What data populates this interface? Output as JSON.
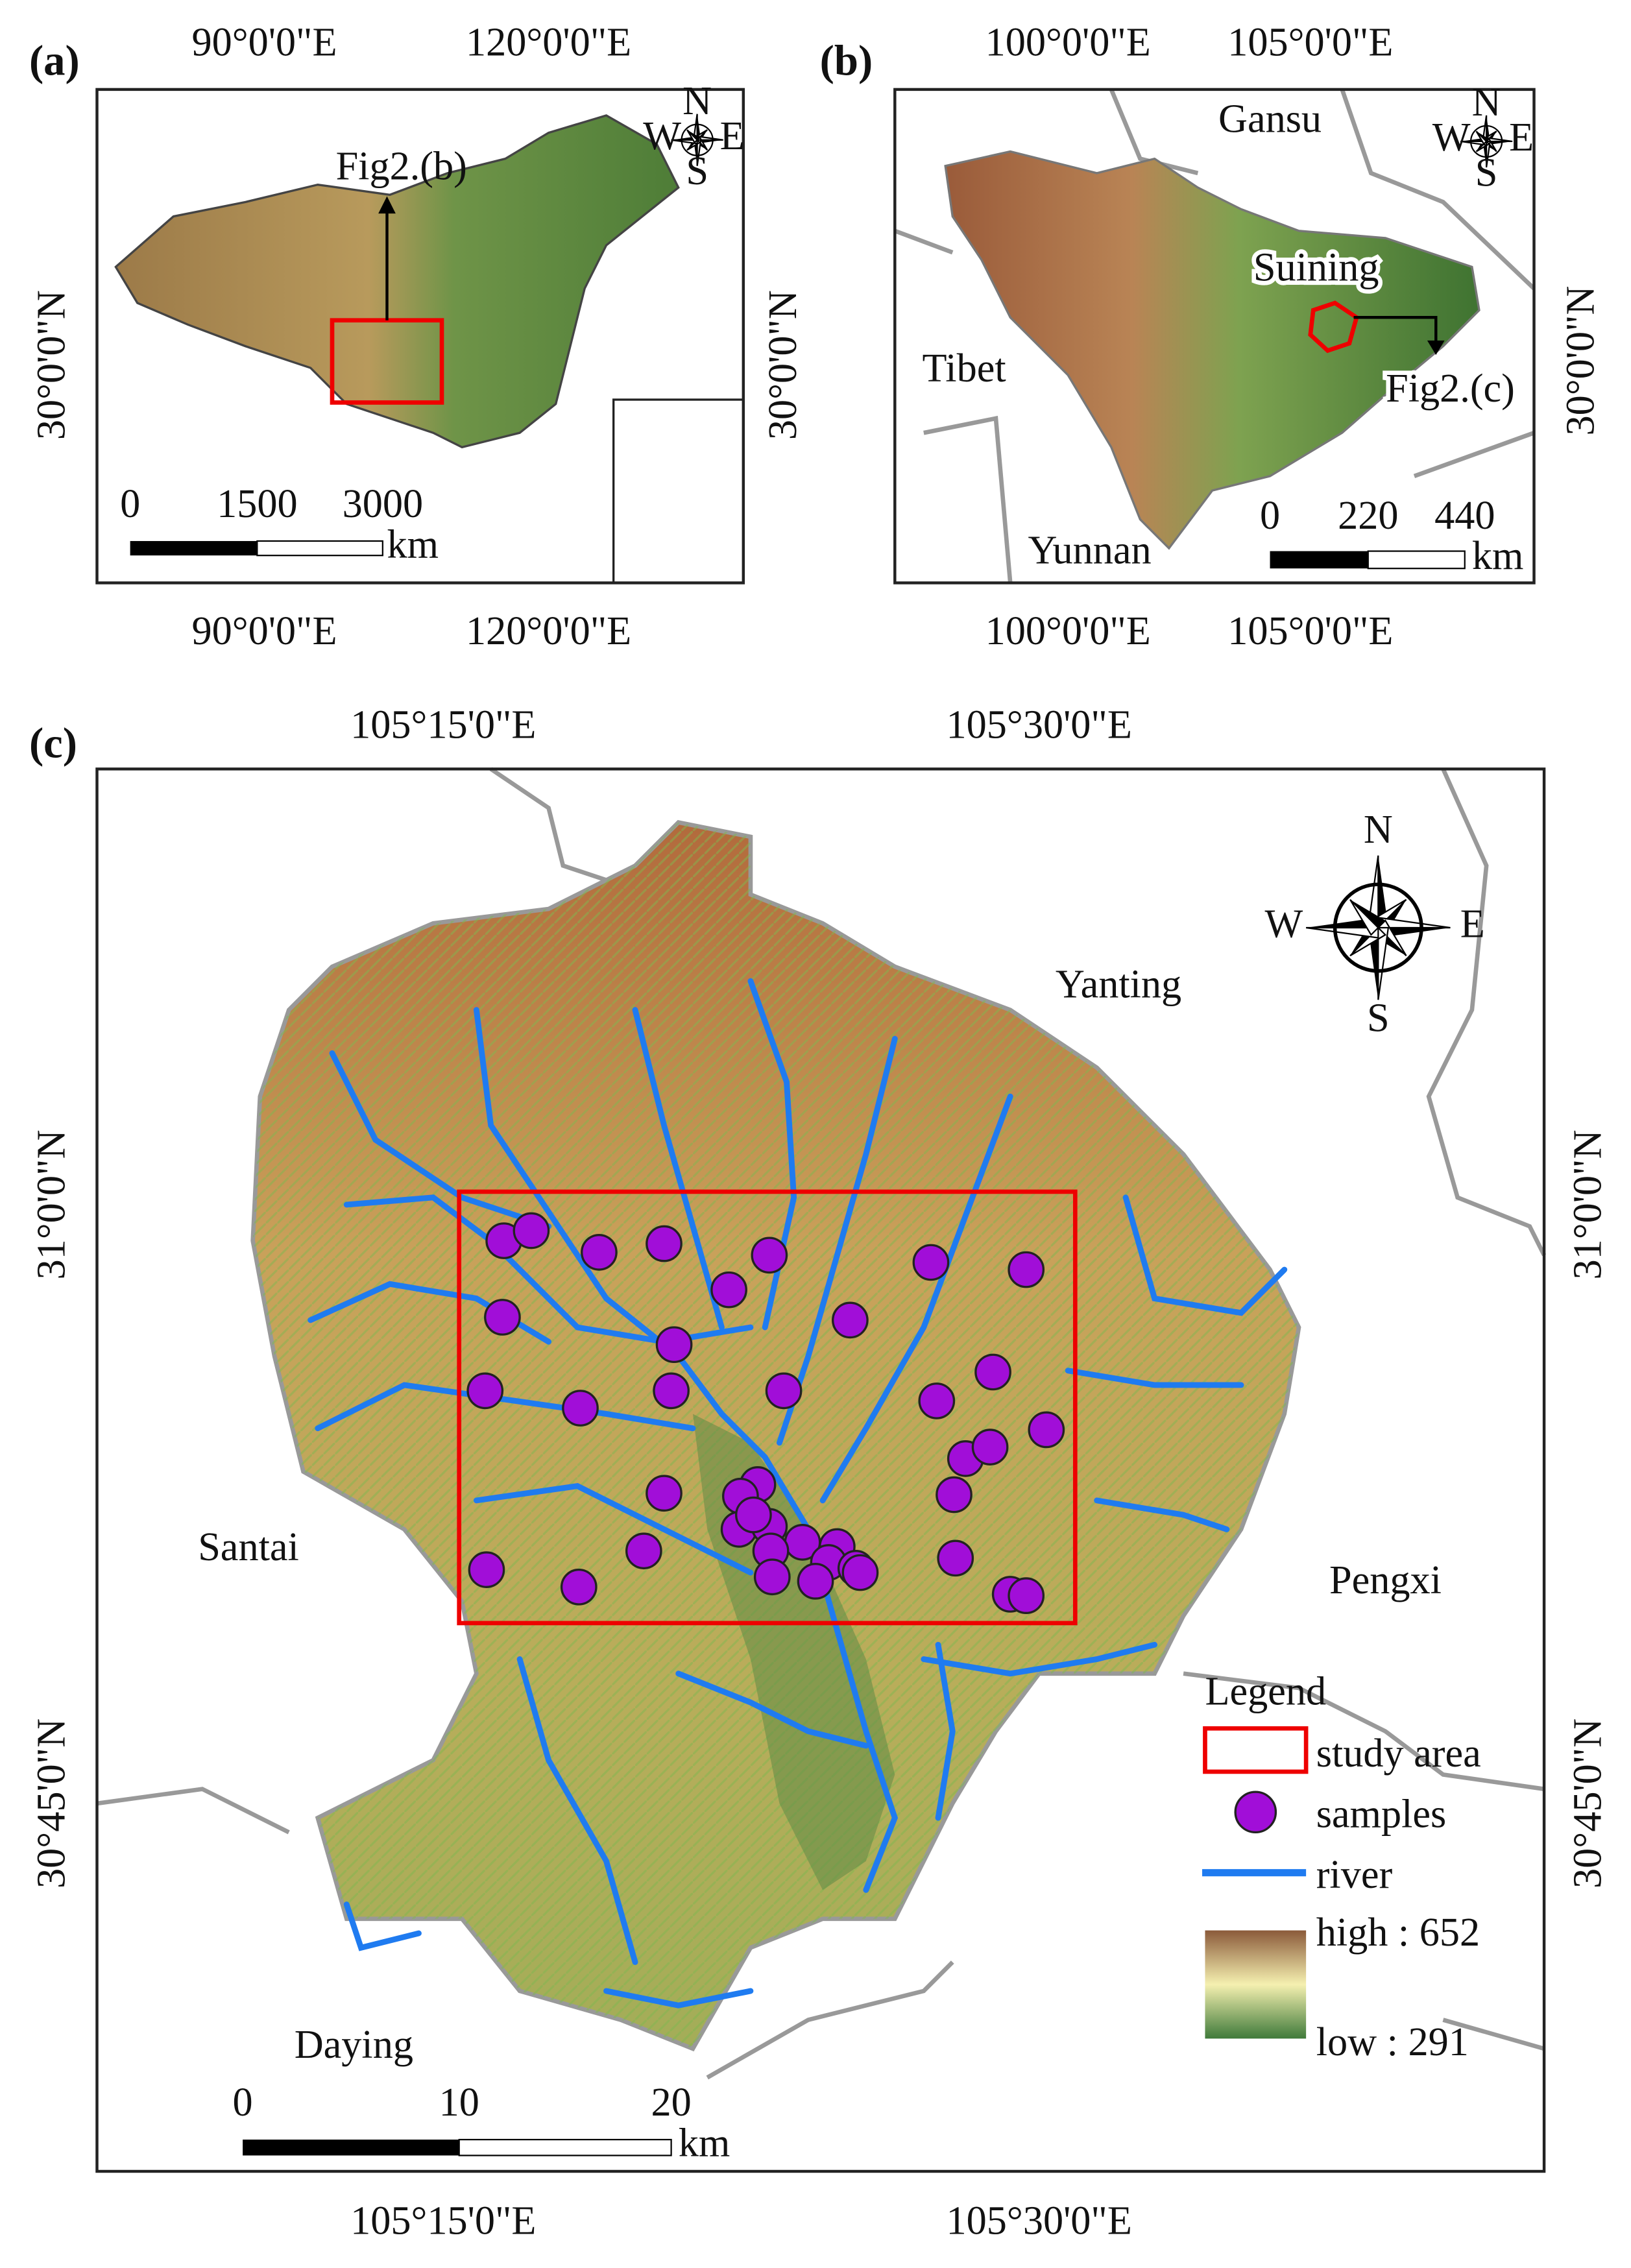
{
  "panel_a": {
    "label": "(a)",
    "top_lon": [
      "90°0'0\"E",
      "120°0'0\"E"
    ],
    "bottom_lon": [
      "90°0'0\"E",
      "120°0'0\"E"
    ],
    "left_lat": "30°0'0\"N",
    "right_lat": "30°0'0\"N",
    "annotation": "Fig2.(b)",
    "scale": [
      0,
      1500,
      3000
    ],
    "unit": "km",
    "compass": [
      "N",
      "E",
      "S",
      "W"
    ]
  },
  "panel_b": {
    "label": "(b)",
    "top_lon": [
      "100°0'0\"E",
      "105°0'0\"E"
    ],
    "bottom_lon": [
      "100°0'0\"E",
      "105°0'0\"E"
    ],
    "right_lat": "30°0'0\"N",
    "places": [
      "Gansu",
      "Tibet",
      "Yunnan",
      "Suining"
    ],
    "annotation": "Fig2.(c)",
    "scale": [
      0,
      220,
      440
    ],
    "unit": "km",
    "compass": [
      "N",
      "E",
      "S",
      "W"
    ]
  },
  "panel_c": {
    "label": "(c)",
    "top_lon": [
      "105°15'0\"E",
      "105°30'0\"E"
    ],
    "bottom_lon": [
      "105°15'0\"E",
      "105°30'0\"E"
    ],
    "left_lat": [
      "31°0'0\"N",
      "30°45'0\"N"
    ],
    "right_lat": [
      "31°0'0\"N",
      "30°45'0\"N"
    ],
    "places": [
      "Yanting",
      "Santai",
      "Pengxi",
      "Daying"
    ],
    "scale": [
      0,
      10,
      20
    ],
    "unit": "km",
    "compass": [
      "N",
      "E",
      "S",
      "W"
    ],
    "legend": {
      "title": "Legend",
      "items": [
        "study area",
        "samples",
        "river"
      ],
      "high": "high : 652",
      "low": "low : 291"
    }
  }
}
